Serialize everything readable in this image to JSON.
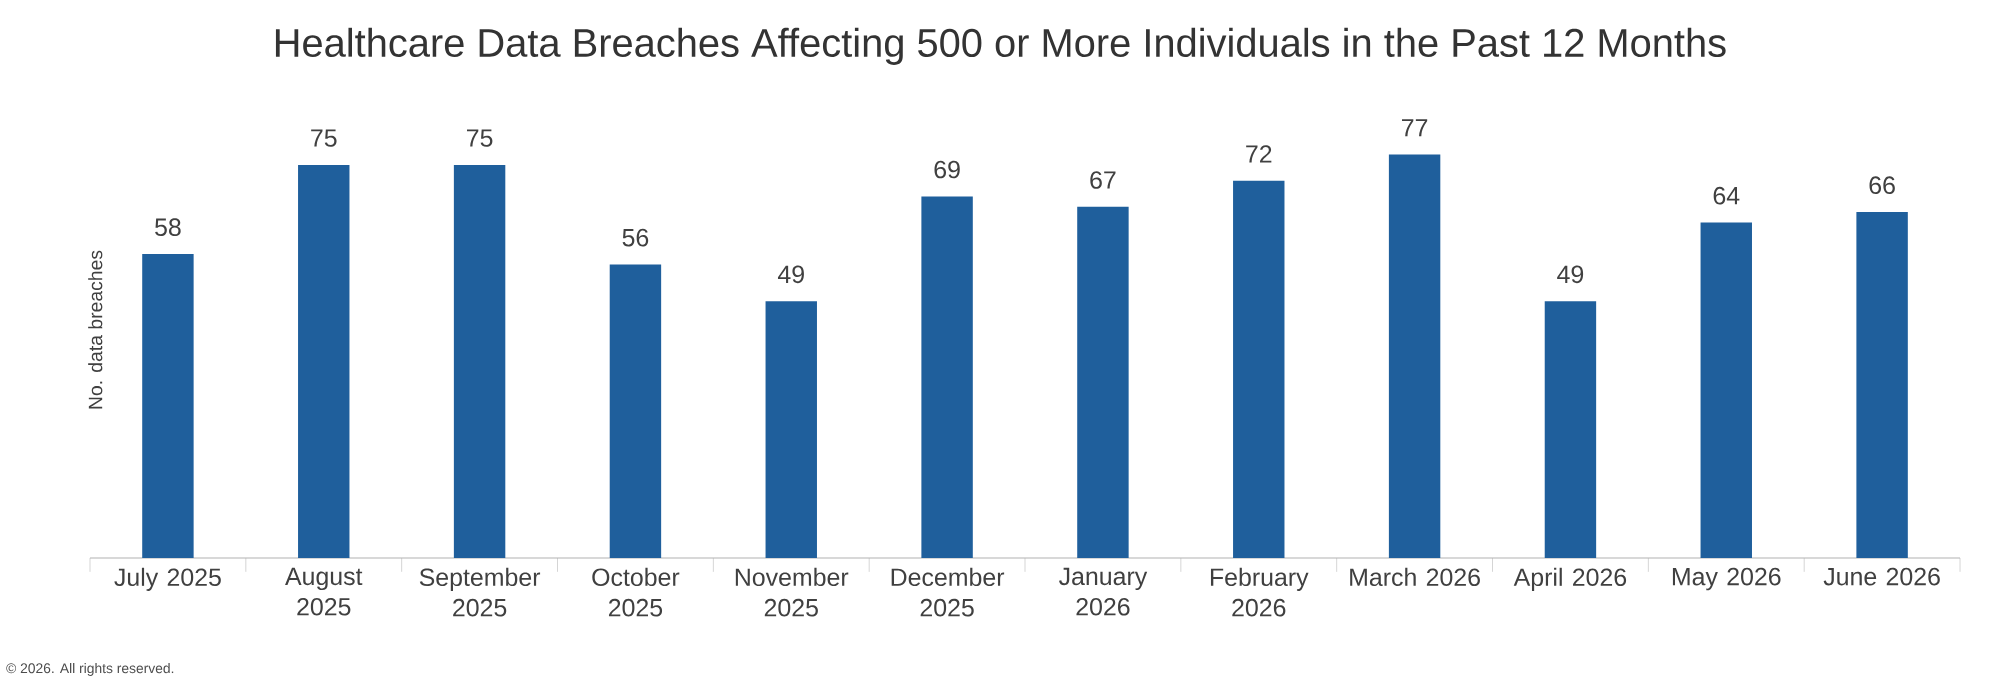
{
  "chart_data": {
    "type": "bar",
    "title": "Healthcare Data Breaches Affecting 500 or More Individuals in the Past 12 Months",
    "ylabel": "No. data breaches",
    "categories": [
      "July 2025",
      "August 2025",
      "September 2025",
      "October 2025",
      "November 2025",
      "December 2025",
      "January 2026",
      "February 2026",
      "March 2026",
      "April 2026",
      "May 2026",
      "June 2026"
    ],
    "values": [
      58,
      75,
      75,
      56,
      49,
      69,
      67,
      72,
      77,
      49,
      64,
      66
    ],
    "color": "#1f5f9c",
    "data_labels": true,
    "annotations": [
      "© 2026. All rights reserved."
    ]
  }
}
